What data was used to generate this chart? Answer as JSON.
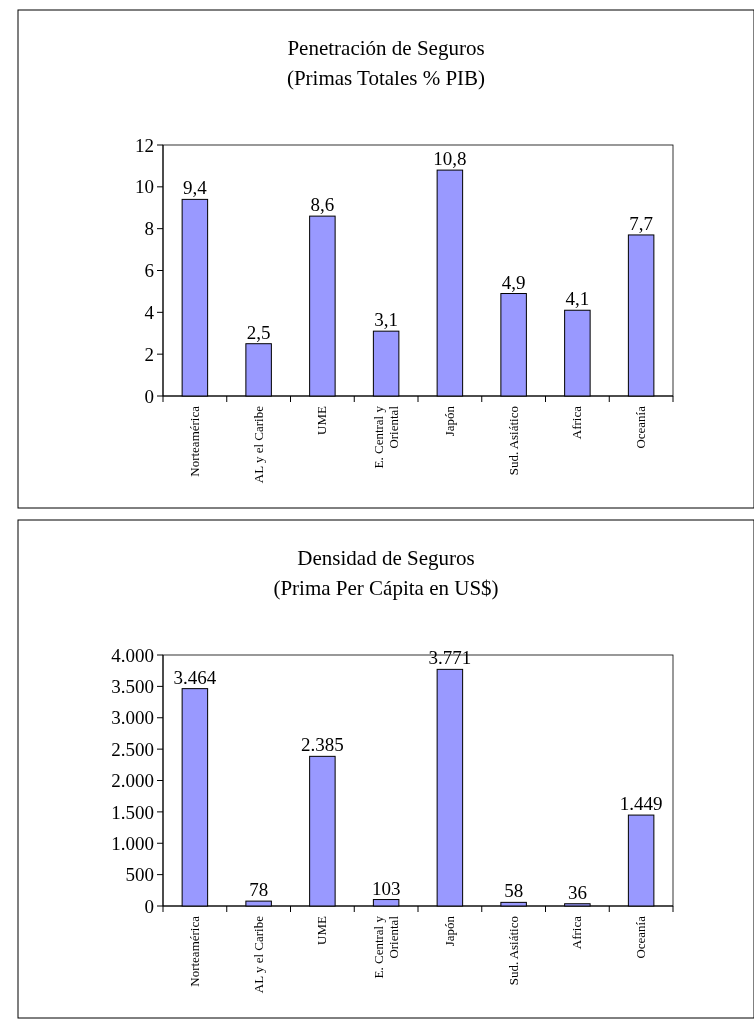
{
  "chart_data": [
    {
      "type": "bar",
      "title": "Penetración de Seguros",
      "subtitle": "(Primas Totales % PIB)",
      "categories": [
        "Norteamérica",
        "AL y el Caribe",
        "UME",
        "E. Central y\nOriental",
        "Japón",
        "Sud. Asiático",
        "Africa",
        "Oceanía"
      ],
      "values": [
        9.4,
        2.5,
        8.6,
        3.1,
        10.8,
        4.9,
        4.1,
        7.7
      ],
      "value_labels": [
        "9,4",
        "2,5",
        "8,6",
        "3,1",
        "10,8",
        "4,9",
        "4,1",
        "7,7"
      ],
      "color": "#9999ff",
      "ylim": [
        0,
        12
      ],
      "yticks": [
        0,
        2,
        4,
        6,
        8,
        10,
        12
      ],
      "grid": false,
      "legend": false
    },
    {
      "type": "bar",
      "title": "Densidad de Seguros",
      "subtitle": "(Prima Per Cápita en US$)",
      "categories": [
        "Norteamérica",
        "AL y el Caribe",
        "UME",
        "E. Central y\nOriental",
        "Japón",
        "Sud. Asiático",
        "Africa",
        "Oceanía"
      ],
      "values": [
        3464,
        78,
        2385,
        103,
        3771,
        58,
        36,
        1449
      ],
      "value_labels": [
        "3.464",
        "78",
        "2.385",
        "103",
        "3.771",
        "58",
        "36",
        "1.449"
      ],
      "color": "#9999ff",
      "ylim": [
        0,
        4000
      ],
      "yticks": [
        0,
        {
          "value": 500,
          "label": "500"
        },
        {
          "value": 1000,
          "label": "1.000"
        },
        {
          "value": 1500,
          "label": "1.500"
        },
        {
          "value": 2000,
          "label": "2.000"
        },
        {
          "value": 2500,
          "label": "2.500"
        },
        {
          "value": 3000,
          "label": "3.000"
        },
        {
          "value": 3500,
          "label": "3.500"
        },
        {
          "value": 4000,
          "label": "4.000"
        }
      ],
      "grid": false,
      "legend": false
    }
  ]
}
